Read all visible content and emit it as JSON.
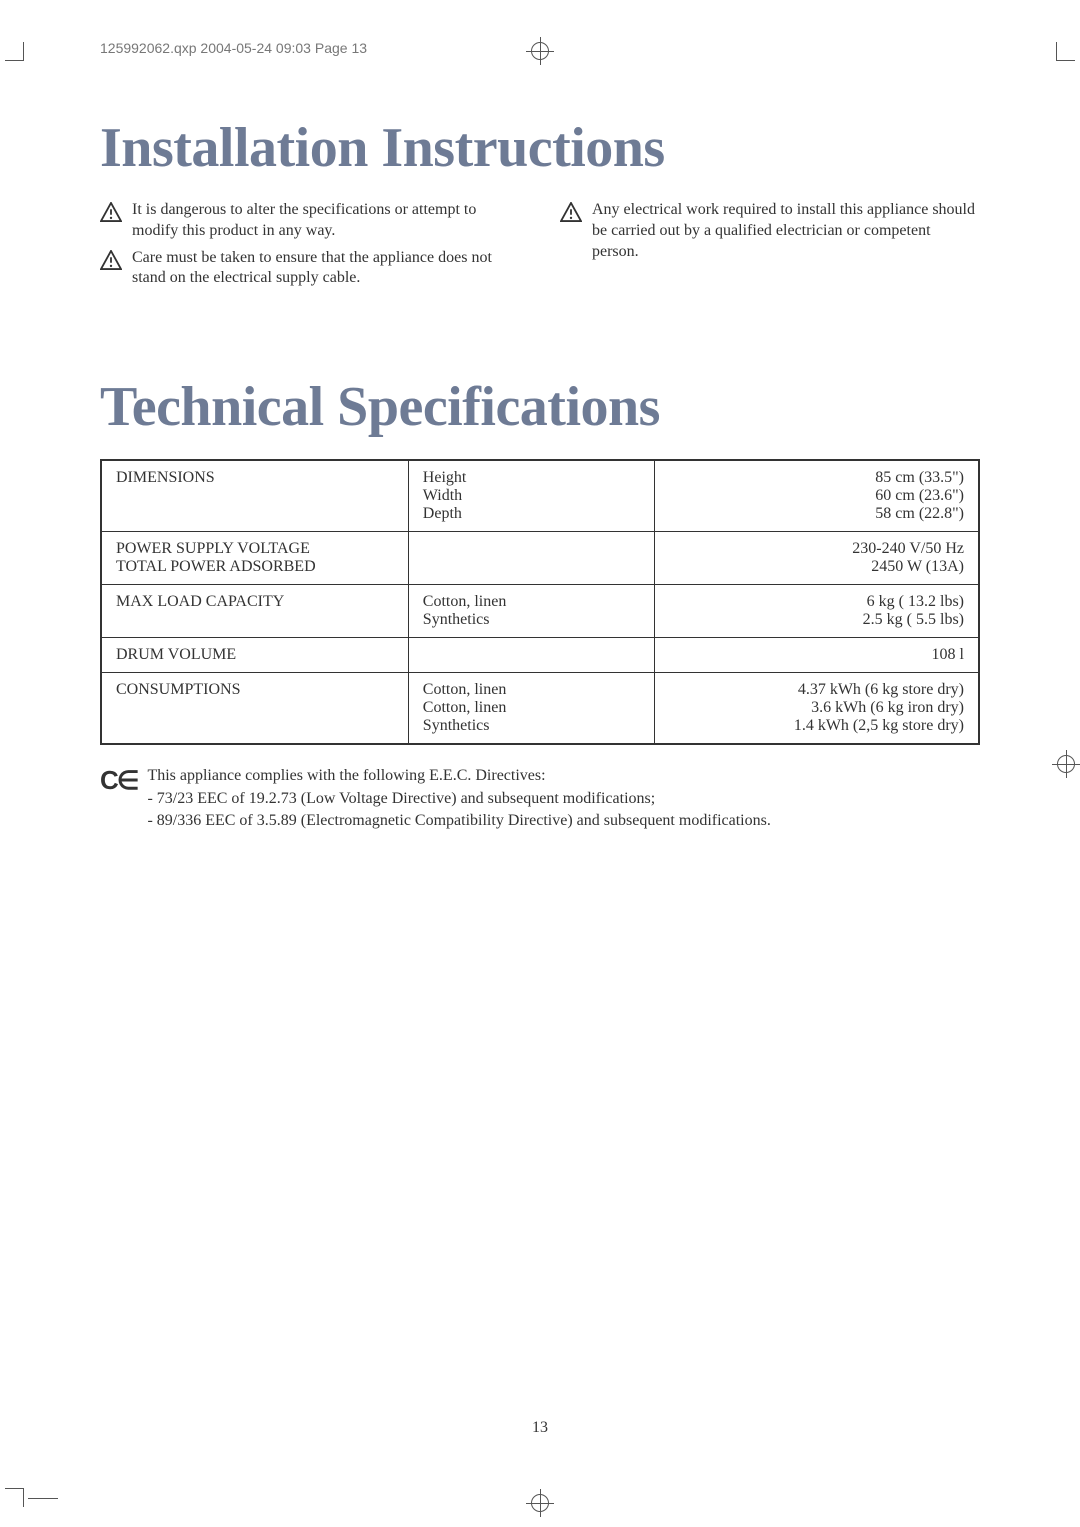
{
  "header_line": "125992062.qxp  2004-05-24  09:03  Page 13",
  "title1": "Installation Instructions",
  "title2": "Technical Specifications",
  "warnings_left": [
    "It is dangerous to alter the specifications or attempt to modify this product in any way.",
    "Care must be taken to ensure that the appliance does not stand on the electrical supply cable."
  ],
  "warnings_right": [
    "Any electrical work required to install this appliance should be carried out by a qualified electrician or competent person."
  ],
  "spec_table": {
    "rows": [
      {
        "label": "DIMENSIONS",
        "mid": "Height\nWidth\nDepth",
        "right": "85 cm (33.5\")\n60 cm (23.6\")\n58 cm (22.8\")"
      },
      {
        "label": "POWER SUPPLY VOLTAGE\nTOTAL POWER ADSORBED",
        "mid": "",
        "right": "230-240 V/50 Hz\n2450 W (13A)"
      },
      {
        "label": "MAX LOAD CAPACITY",
        "mid": "Cotton, linen\nSynthetics",
        "right": "6   kg ( 13.2 lbs)\n2.5 kg (  5.5 lbs)"
      },
      {
        "label": "DRUM VOLUME",
        "mid": "",
        "right": "108 l"
      },
      {
        "label": "CONSUMPTIONS",
        "mid": "Cotton, linen\nCotton, linen\nSynthetics",
        "right": "4.37 kWh (6    kg store dry)\n3.6  kWh  (6    kg iron dry)\n1.4   kWh (2,5 kg store dry)"
      }
    ]
  },
  "ce_mark": "C∈",
  "ce_lines": [
    "This appliance complies with the following E.E.C. Directives:",
    "- 73/23 EEC of 19.2.73 (Low Voltage Directive) and subsequent modifications;",
    "- 89/336 EEC of 3.5.89 (Electromagnetic Compatibility Directive) and subsequent modifications."
  ],
  "page_number": "13"
}
